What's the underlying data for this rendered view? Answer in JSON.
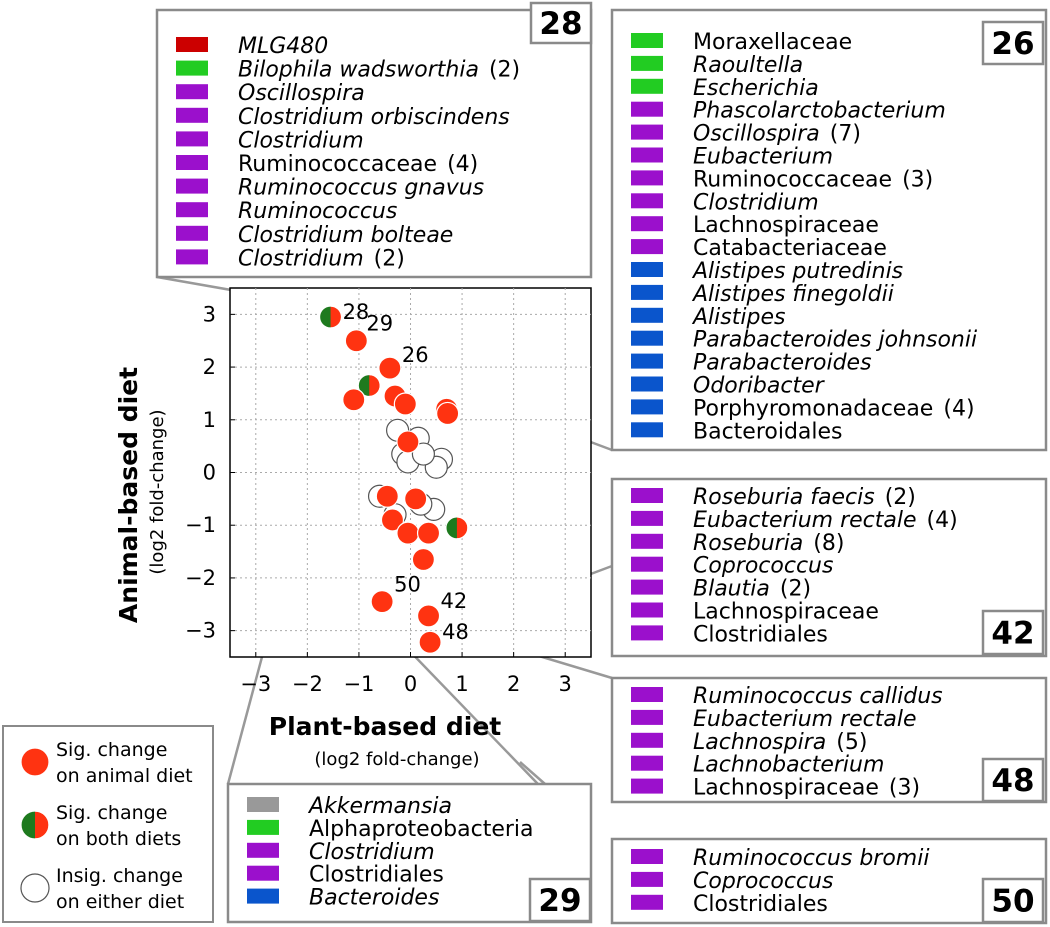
{
  "colors": {
    "sig_red": "#ff3311",
    "sig_green": "#1e7a1e",
    "swatch_red": "#cc0000",
    "swatch_green": "#22cc22",
    "swatch_purple": "#9b10cc",
    "swatch_blue": "#0a55cc",
    "swatch_gray": "#999999",
    "box_border": "#8a8a8a",
    "connector": "#999999",
    "grid": "#aaaaaa"
  },
  "chart_data": {
    "type": "scatter",
    "xlabel": "Plant-based diet",
    "xlabel_sub": "(log2 fold-change)",
    "ylabel": "Animal-based diet",
    "ylabel_sub": "(log2 fold-change)",
    "xlim": [
      -3.5,
      3.5
    ],
    "ylim": [
      -3.5,
      3.5
    ],
    "xticks": [
      "−3",
      "−2",
      "−1",
      "0",
      "1",
      "2",
      "3"
    ],
    "yticks": [
      "3",
      "2",
      "1",
      "0",
      "−1",
      "−2",
      "−3"
    ],
    "grid": true,
    "points": [
      {
        "x": 0.6,
        "y": 0.25,
        "kind": "insig"
      },
      {
        "x": 0.5,
        "y": 0.1,
        "kind": "insig"
      },
      {
        "x": 0.45,
        "y": -0.7,
        "kind": "insig"
      },
      {
        "x": -0.3,
        "y": -0.8,
        "kind": "insig"
      },
      {
        "x": -0.25,
        "y": 0.8,
        "kind": "insig"
      },
      {
        "x": 0.15,
        "y": 0.65,
        "kind": "insig"
      },
      {
        "x": -0.15,
        "y": 0.35,
        "kind": "insig"
      },
      {
        "x": -0.05,
        "y": 0.2,
        "kind": "insig"
      },
      {
        "x": 0.25,
        "y": 0.35,
        "kind": "insig"
      },
      {
        "x": -0.6,
        "y": -0.45,
        "kind": "insig"
      },
      {
        "x": 0.2,
        "y": -0.6,
        "kind": "insig"
      },
      {
        "x": -1.55,
        "y": 2.95,
        "kind": "both",
        "label": "28"
      },
      {
        "x": -1.05,
        "y": 2.5,
        "kind": "animal",
        "label": "29"
      },
      {
        "x": -0.4,
        "y": 1.98,
        "kind": "animal",
        "label": "26"
      },
      {
        "x": -0.8,
        "y": 1.65,
        "kind": "both"
      },
      {
        "x": -1.1,
        "y": 1.38,
        "kind": "animal"
      },
      {
        "x": -0.3,
        "y": 1.45,
        "kind": "animal"
      },
      {
        "x": -0.1,
        "y": 1.3,
        "kind": "animal"
      },
      {
        "x": 0.7,
        "y": 1.2,
        "kind": "animal"
      },
      {
        "x": 0.72,
        "y": 1.12,
        "kind": "animal"
      },
      {
        "x": -0.05,
        "y": 0.58,
        "kind": "animal"
      },
      {
        "x": -0.45,
        "y": -0.45,
        "kind": "animal"
      },
      {
        "x": 0.1,
        "y": -0.5,
        "kind": "animal"
      },
      {
        "x": -0.35,
        "y": -0.9,
        "kind": "animal"
      },
      {
        "x": -0.05,
        "y": -1.15,
        "kind": "animal"
      },
      {
        "x": 0.35,
        "y": -1.15,
        "kind": "animal"
      },
      {
        "x": 0.9,
        "y": -1.05,
        "kind": "both"
      },
      {
        "x": 0.25,
        "y": -1.65,
        "kind": "animal"
      },
      {
        "x": -0.55,
        "y": -2.45,
        "kind": "animal",
        "label": "50"
      },
      {
        "x": 0.35,
        "y": -2.72,
        "kind": "animal",
        "label": "42"
      },
      {
        "x": 0.38,
        "y": -3.22,
        "kind": "animal",
        "label": "48"
      }
    ]
  },
  "legend": {
    "items": [
      {
        "kind": "animal",
        "line1": "Sig. change",
        "line2": "on animal diet"
      },
      {
        "kind": "both",
        "line1": "Sig. change",
        "line2": "on both diets"
      },
      {
        "kind": "insig",
        "line1": "Insig. change",
        "line2": "on either diet"
      }
    ]
  },
  "boxes": [
    {
      "id": "28",
      "number": "28",
      "entries": [
        {
          "color": "red",
          "name": "MLG480",
          "italic": true,
          "count": ""
        },
        {
          "color": "green",
          "name": "Bilophila wadsworthia",
          "italic": true,
          "count": "(2)"
        },
        {
          "color": "purple",
          "name": "Oscillospira",
          "italic": true,
          "count": ""
        },
        {
          "color": "purple",
          "name": "Clostridium orbiscindens",
          "italic": true,
          "count": ""
        },
        {
          "color": "purple",
          "name": "Clostridium",
          "italic": true,
          "count": ""
        },
        {
          "color": "purple",
          "name": "Ruminococcaceae",
          "italic": false,
          "count": "(4)"
        },
        {
          "color": "purple",
          "name": "Ruminococcus gnavus",
          "italic": true,
          "count": ""
        },
        {
          "color": "purple",
          "name": "Ruminococcus",
          "italic": true,
          "count": ""
        },
        {
          "color": "purple",
          "name": "Clostridium bolteae",
          "italic": true,
          "count": ""
        },
        {
          "color": "purple",
          "name": "Clostridium",
          "italic": true,
          "count": "(2)"
        }
      ]
    },
    {
      "id": "26",
      "number": "26",
      "entries": [
        {
          "color": "green",
          "name": "Moraxellaceae",
          "italic": false,
          "count": ""
        },
        {
          "color": "green",
          "name": "Raoultella",
          "italic": true,
          "count": ""
        },
        {
          "color": "green",
          "name": "Escherichia",
          "italic": true,
          "count": ""
        },
        {
          "color": "purple",
          "name": "Phascolarctobacterium",
          "italic": true,
          "count": ""
        },
        {
          "color": "purple",
          "name": "Oscillospira",
          "italic": true,
          "count": "(7)"
        },
        {
          "color": "purple",
          "name": "Eubacterium",
          "italic": true,
          "count": ""
        },
        {
          "color": "purple",
          "name": "Ruminococcaceae",
          "italic": false,
          "count": "(3)"
        },
        {
          "color": "purple",
          "name": "Clostridium",
          "italic": true,
          "count": ""
        },
        {
          "color": "purple",
          "name": "Lachnospiraceae",
          "italic": false,
          "count": ""
        },
        {
          "color": "purple",
          "name": "Catabacteriaceae",
          "italic": false,
          "count": ""
        },
        {
          "color": "blue",
          "name": "Alistipes putredinis",
          "italic": true,
          "count": ""
        },
        {
          "color": "blue",
          "name": "Alistipes finegoldii",
          "italic": true,
          "count": ""
        },
        {
          "color": "blue",
          "name": "Alistipes",
          "italic": true,
          "count": ""
        },
        {
          "color": "blue",
          "name": "Parabacteroides johnsonii",
          "italic": true,
          "count": ""
        },
        {
          "color": "blue",
          "name": "Parabacteroides",
          "italic": true,
          "count": ""
        },
        {
          "color": "blue",
          "name": "Odoribacter",
          "italic": true,
          "count": ""
        },
        {
          "color": "blue",
          "name": "Porphyromonadaceae",
          "italic": false,
          "count": "(4)"
        },
        {
          "color": "blue",
          "name": "Bacteroidales",
          "italic": false,
          "count": ""
        }
      ]
    },
    {
      "id": "42",
      "number": "42",
      "entries": [
        {
          "color": "purple",
          "name": "Roseburia faecis",
          "italic": true,
          "count": "(2)"
        },
        {
          "color": "purple",
          "name": "Eubacterium rectale",
          "italic": true,
          "count": "(4)"
        },
        {
          "color": "purple",
          "name": "Roseburia",
          "italic": true,
          "count": "(8)"
        },
        {
          "color": "purple",
          "name": "Coprococcus",
          "italic": true,
          "count": ""
        },
        {
          "color": "purple",
          "name": "Blautia",
          "italic": true,
          "count": "(2)"
        },
        {
          "color": "purple",
          "name": "Lachnospiraceae",
          "italic": false,
          "count": ""
        },
        {
          "color": "purple",
          "name": "Clostridiales",
          "italic": false,
          "count": ""
        }
      ]
    },
    {
      "id": "48",
      "number": "48",
      "entries": [
        {
          "color": "purple",
          "name": "Ruminococcus callidus",
          "italic": true,
          "count": ""
        },
        {
          "color": "purple",
          "name": "Eubacterium rectale",
          "italic": true,
          "count": ""
        },
        {
          "color": "purple",
          "name": "Lachnospira",
          "italic": true,
          "count": "(5)"
        },
        {
          "color": "purple",
          "name": "Lachnobacterium",
          "italic": true,
          "count": ""
        },
        {
          "color": "purple",
          "name": "Lachnospiraceae",
          "italic": false,
          "count": "(3)"
        }
      ]
    },
    {
      "id": "29",
      "number": "29",
      "entries": [
        {
          "color": "gray",
          "name": "Akkermansia",
          "italic": true,
          "count": ""
        },
        {
          "color": "green",
          "name": "Alphaproteobacteria",
          "italic": false,
          "count": ""
        },
        {
          "color": "purple",
          "name": "Clostridium",
          "italic": true,
          "count": ""
        },
        {
          "color": "purple",
          "name": "Clostridiales",
          "italic": false,
          "count": ""
        },
        {
          "color": "blue",
          "name": "Bacteroides",
          "italic": true,
          "count": ""
        }
      ]
    },
    {
      "id": "50",
      "number": "50",
      "entries": [
        {
          "color": "purple",
          "name": "Ruminococcus bromii",
          "italic": true,
          "count": ""
        },
        {
          "color": "purple",
          "name": "Coprococcus",
          "italic": true,
          "count": ""
        },
        {
          "color": "purple",
          "name": "Clostridiales",
          "italic": false,
          "count": ""
        }
      ]
    }
  ]
}
